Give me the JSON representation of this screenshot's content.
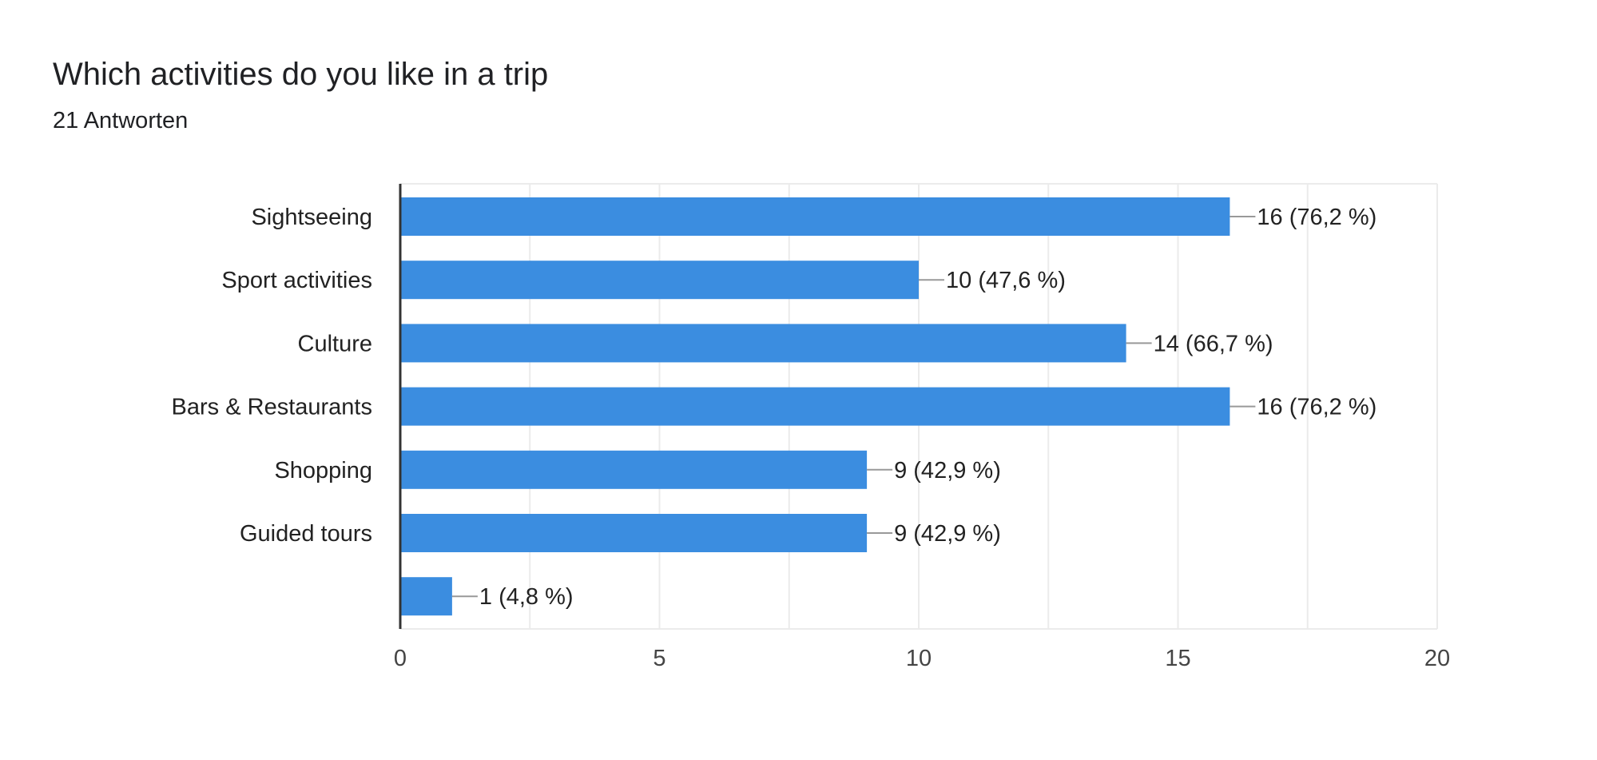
{
  "title": "Which activities do you like in a trip",
  "subtitle": "21 Antworten",
  "colors": {
    "bar": "#3b8de0",
    "grid": "#ebebeb",
    "axis": "#333333",
    "leader": "#999999"
  },
  "chart_data": {
    "type": "bar",
    "orientation": "horizontal",
    "title": "Which activities do you like in a trip",
    "subtitle": "21 Antworten",
    "categories": [
      "Sightseeing",
      "Sport activities",
      "Culture",
      "Bars & Restaurants",
      "Shopping",
      "Guided tours",
      ""
    ],
    "values": [
      16,
      10,
      14,
      16,
      9,
      9,
      1
    ],
    "data_labels": [
      "16 (76,2 %)",
      "10 (47,6 %)",
      "14 (66,7 %)",
      "16 (76,2 %)",
      "9 (42,9 %)",
      "9 (42,9 %)",
      "1 (4,8 %)"
    ],
    "xlim": [
      0,
      20
    ],
    "x_ticks": [
      0,
      5,
      10,
      15,
      20
    ],
    "x_tick_labels": [
      "0",
      "5",
      "10",
      "15",
      "20"
    ],
    "minor_grid_step": 2.5,
    "grid": true,
    "legend": "none"
  }
}
